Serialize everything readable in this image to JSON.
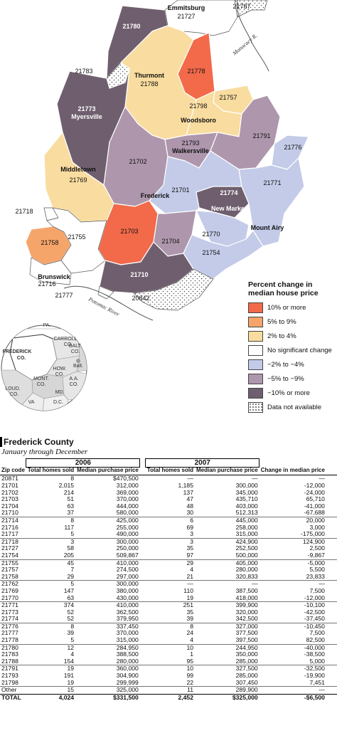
{
  "colors": {
    "c10_up": "#f26a4a",
    "c5_9_up": "#f6a56a",
    "c2_4_up": "#f9dc9f",
    "none": "#ffffff",
    "c2_4_dn": "#c3cbe8",
    "c5_9_dn": "#ae96ac",
    "c10_dn": "#6f5f6e",
    "na": "#ffffff"
  },
  "map": {
    "zones": [
      {
        "zip": "21780",
        "name": "",
        "cat": "c10_dn"
      },
      {
        "zip": "21727",
        "name": "Emmitsburg",
        "cat": "none"
      },
      {
        "zip": "21787",
        "name": "",
        "cat": "na"
      },
      {
        "zip": "21783",
        "name": "",
        "cat": "na"
      },
      {
        "zip": "21788",
        "name": "Thurmont",
        "cat": "c2_4_up"
      },
      {
        "zip": "21778",
        "name": "",
        "cat": "c10_up"
      },
      {
        "zip": "21757",
        "name": "",
        "cat": "c2_4_up"
      },
      {
        "zip": "21798",
        "name": "Woodsboro",
        "cat": "c2_4_up"
      },
      {
        "zip": "21773",
        "name": "Myersville",
        "cat": "c10_dn"
      },
      {
        "zip": "21793",
        "name": "Walkersville",
        "cat": "c5_9_dn"
      },
      {
        "zip": "21791",
        "name": "",
        "cat": "c5_9_dn"
      },
      {
        "zip": "21776",
        "name": "",
        "cat": "c2_4_dn"
      },
      {
        "zip": "21702",
        "name": "",
        "cat": "c5_9_dn"
      },
      {
        "zip": "21769",
        "name": "Middletown",
        "cat": "c2_4_up"
      },
      {
        "zip": "21701",
        "name": "Frederick",
        "cat": "c2_4_dn"
      },
      {
        "zip": "21774",
        "name": "New Market",
        "cat": "c10_dn"
      },
      {
        "zip": "21771",
        "name": "Mount Airy",
        "cat": "c2_4_dn"
      },
      {
        "zip": "21718",
        "name": "",
        "cat": "none"
      },
      {
        "zip": "21703",
        "name": "",
        "cat": "c10_up"
      },
      {
        "zip": "21704",
        "name": "",
        "cat": "c5_9_dn"
      },
      {
        "zip": "21770",
        "name": "",
        "cat": "c2_4_dn"
      },
      {
        "zip": "21754",
        "name": "",
        "cat": "c2_4_dn"
      },
      {
        "zip": "21758",
        "name": "",
        "cat": "c5_9_up"
      },
      {
        "zip": "21755",
        "name": "",
        "cat": "none"
      },
      {
        "zip": "21716",
        "name": "Brunswick",
        "cat": "none"
      },
      {
        "zip": "21710",
        "name": "",
        "cat": "c10_dn"
      },
      {
        "zip": "21777",
        "name": "",
        "cat": "none"
      },
      {
        "zip": "20842",
        "name": "",
        "cat": "na"
      }
    ],
    "rivers": {
      "monocacy": "Monocacy R.",
      "potomac": "Potomac River"
    },
    "inset": {
      "labels": [
        "PA.",
        "CARROLL",
        "CO.",
        "BALT.",
        "CO.",
        "FREDERICK",
        "CO.",
        "Balt.",
        "HOW.",
        "CO.",
        "MONT.",
        "CO.",
        "A.A.",
        "CO.",
        "LOUD.",
        "CO.",
        "MD.",
        "VA",
        "D.C."
      ]
    }
  },
  "legend": {
    "title_line1": "Percent change in",
    "title_line2": "median house price",
    "items": [
      {
        "cat": "c10_up",
        "label": "10% or more"
      },
      {
        "cat": "c5_9_up",
        "label": "5% to 9%"
      },
      {
        "cat": "c2_4_up",
        "label": "2% to 4%"
      },
      {
        "cat": "none",
        "label": "No significant change"
      },
      {
        "cat": "c2_4_dn",
        "label": "−2% to −4%"
      },
      {
        "cat": "c5_9_dn",
        "label": "−5% to −9%"
      },
      {
        "cat": "c10_dn",
        "label": "−10% or more"
      },
      {
        "cat": "na",
        "label": "Data not available"
      }
    ]
  },
  "table": {
    "title": "Frederick County",
    "subtitle": "January through December",
    "year1": "2006",
    "year2": "2007",
    "headers": {
      "zip": "Zip code",
      "homes": "Total homes sold",
      "price": "Median purchase price",
      "change": "Change in median price"
    },
    "rows": [
      [
        "20871",
        "8",
        "$470,500",
        "—",
        "—",
        "—"
      ],
      [
        "21701",
        "2,015",
        "312,000",
        "1,185",
        "300,000",
        "-12,000"
      ],
      [
        "21702",
        "214",
        "369,000",
        "137",
        "345,000",
        "-24,000"
      ],
      [
        "21703",
        "51",
        "370,000",
        "47",
        "435,710",
        "65,710"
      ],
      [
        "21704",
        "63",
        "444,000",
        "48",
        "403,000",
        "-41,000"
      ],
      [
        "21710",
        "37",
        "580,000",
        "30",
        "512,313",
        "-67,688"
      ],
      [
        "21714",
        "8",
        "425,000",
        "6",
        "445,000",
        "20,000"
      ],
      [
        "21716",
        "117",
        "255,000",
        "69",
        "258,000",
        "3,000"
      ],
      [
        "21717",
        "5",
        "490,000",
        "3",
        "315,000",
        "-175,000"
      ],
      [
        "21718",
        "3",
        "300,000",
        "3",
        "424,900",
        "124,900"
      ],
      [
        "21727",
        "58",
        "250,000",
        "35",
        "252,500",
        "2,500"
      ],
      [
        "21754",
        "205",
        "509,867",
        "97",
        "500,000",
        "-9,867"
      ],
      [
        "21755",
        "45",
        "410,000",
        "29",
        "405,000",
        "-5,000"
      ],
      [
        "21757",
        "7",
        "274,500",
        "4",
        "280,000",
        "5,500"
      ],
      [
        "21758",
        "29",
        "297,000",
        "21",
        "320,833",
        "23,833"
      ],
      [
        "21762",
        "5",
        "300,000",
        "—",
        "—",
        "—"
      ],
      [
        "21769",
        "147",
        "380,000",
        "110",
        "387,500",
        "7,500"
      ],
      [
        "21770",
        "63",
        "430,000",
        "19",
        "418,000",
        "-12,000"
      ],
      [
        "21771",
        "374",
        "410,000",
        "251",
        "399,900",
        "-10,100"
      ],
      [
        "21773",
        "52",
        "362,500",
        "35",
        "320,000",
        "-42,500"
      ],
      [
        "21774",
        "52",
        "379,950",
        "39",
        "342,500",
        "-37,450"
      ],
      [
        "21776",
        "8",
        "337,450",
        "8",
        "327,000",
        "-10,450"
      ],
      [
        "21777",
        "39",
        "370,000",
        "24",
        "377,500",
        "7,500"
      ],
      [
        "21778",
        "5",
        "315,000",
        "4",
        "397,500",
        "82,500"
      ],
      [
        "21780",
        "12",
        "284,950",
        "10",
        "244,950",
        "-40,000"
      ],
      [
        "21783",
        "4",
        "388,500",
        "1",
        "350,000",
        "-38,500"
      ],
      [
        "21788",
        "154",
        "280,000",
        "95",
        "285,000",
        "5,000"
      ],
      [
        "21791",
        "19",
        "360,000",
        "10",
        "327,500",
        "-32,500"
      ],
      [
        "21793",
        "191",
        "304,900",
        "99",
        "285,000",
        "-19,900"
      ],
      [
        "21798",
        "19",
        "299,999",
        "22",
        "307,450",
        "7,451"
      ],
      [
        "Other",
        "15",
        "325,000",
        "11",
        "289,900",
        "—"
      ]
    ],
    "total": [
      "TOTAL",
      "4,024",
      "$331,500",
      "2,452",
      "$325,000",
      "-$6,500"
    ]
  }
}
